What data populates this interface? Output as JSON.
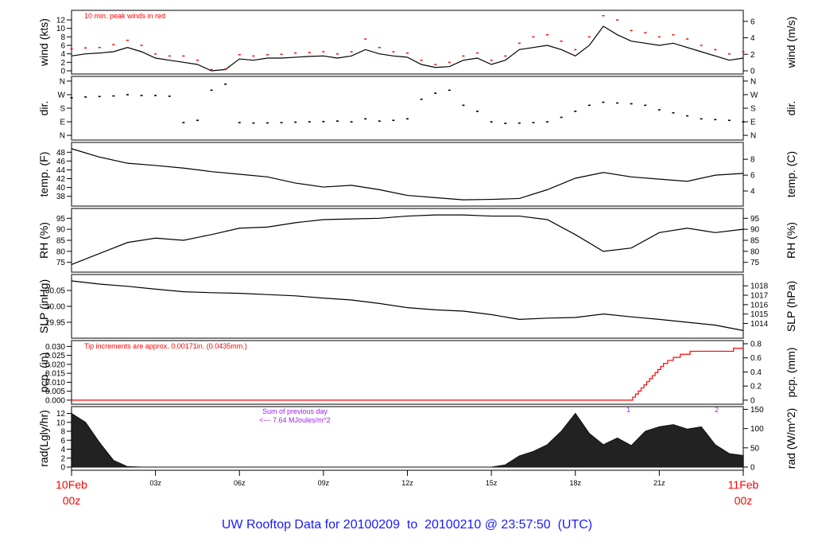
{
  "title": "UW Rooftop Data for 20100209  to  20100210 @ 23:57:50  (UTC)",
  "colors": {
    "line": "#000000",
    "peak": "#ff0000",
    "precip": "#ff0000",
    "note_purple": "#a020f0",
    "title": "#1a1aff",
    "date_labels": "#ff0000"
  },
  "chart_data": {
    "type": "line",
    "x_unit": "hour UTC",
    "xlim": [
      0,
      24
    ],
    "x_ticks": [
      {
        "h": 0,
        "label": "10Feb",
        "label2": "00z"
      },
      {
        "h": 3,
        "label": "03z"
      },
      {
        "h": 6,
        "label": "06z"
      },
      {
        "h": 9,
        "label": "09z"
      },
      {
        "h": 12,
        "label": "12z"
      },
      {
        "h": 15,
        "label": "15z"
      },
      {
        "h": 18,
        "label": "18z"
      },
      {
        "h": 21,
        "label": "21z"
      },
      {
        "h": 24,
        "label": "11Feb",
        "label2": "00z"
      }
    ],
    "panels": [
      {
        "id": "wind",
        "ylabel": "wind (kts)",
        "ylabel_right": "wind (m/s)",
        "ylim": [
          0,
          13.5
        ],
        "yticks": [
          0,
          2,
          4,
          6,
          8,
          10,
          12
        ],
        "yticks_right": [
          {
            "v": 0,
            "label": "0"
          },
          {
            "v": 3.888,
            "label": "2"
          },
          {
            "v": 7.776,
            "label": "4"
          },
          {
            "v": 11.664,
            "label": "6"
          }
        ],
        "annotation": "10 min. peak winds in red",
        "x_step": 0.5,
        "series": [
          3.5,
          4,
          4.2,
          4.5,
          5.5,
          4.5,
          3,
          2.5,
          2,
          1.5,
          0,
          0.3,
          2.8,
          2.5,
          3,
          3,
          3.2,
          3.4,
          3.5,
          3,
          3.5,
          5,
          4,
          3.5,
          3.2,
          1.5,
          0.8,
          1,
          2.5,
          3,
          1.5,
          2.5,
          5,
          5.5,
          6,
          5,
          3.5,
          6,
          10.5,
          8.5,
          7,
          6.5,
          6,
          6.5,
          5.5,
          4.5,
          3.5,
          2.5,
          3
        ],
        "peaks": [
          5.2,
          5.4,
          5.5,
          6.2,
          7.2,
          6,
          4,
          3.5,
          3.5,
          2.5,
          0.3,
          0.4,
          3.8,
          3.5,
          3.8,
          3.9,
          4.2,
          4.3,
          4.5,
          4,
          4.5,
          7.5,
          5.5,
          4.5,
          4.2,
          2.5,
          1.5,
          2,
          3.5,
          4.2,
          2.5,
          3.5,
          6.5,
          8,
          8.5,
          7,
          5,
          8,
          13,
          12,
          9.5,
          9,
          8,
          8.5,
          7.5,
          6,
          5,
          4,
          4.5
        ]
      },
      {
        "id": "dir",
        "ylabel": "dir.",
        "ylabel_right": "dir.",
        "ylim": [
          -10,
          370
        ],
        "style": "points",
        "yticks_labeled": [
          {
            "v": 0,
            "label": "N"
          },
          {
            "v": 90,
            "label": "E"
          },
          {
            "v": 180,
            "label": "S"
          },
          {
            "v": 270,
            "label": "W"
          },
          {
            "v": 360,
            "label": "N"
          }
        ],
        "x_step": 0.5,
        "series": [
          250,
          255,
          258,
          262,
          270,
          265,
          265,
          260,
          85,
          100,
          300,
          340,
          85,
          82,
          83,
          85,
          88,
          90,
          92,
          95,
          90,
          110,
          95,
          100,
          110,
          240,
          280,
          300,
          200,
          160,
          90,
          80,
          82,
          85,
          90,
          120,
          160,
          200,
          220,
          215,
          210,
          200,
          170,
          150,
          130,
          110,
          105,
          100,
          90
        ]
      },
      {
        "id": "temp",
        "ylabel": "temp. (F)",
        "ylabel_right": "temp. (C)",
        "ylim": [
          36.5,
          49.5
        ],
        "yticks": [
          38,
          40,
          42,
          44,
          46,
          48
        ],
        "yticks_right": [
          {
            "v": 39.2,
            "label": "4"
          },
          {
            "v": 42.8,
            "label": "6"
          },
          {
            "v": 46.4,
            "label": "8"
          }
        ],
        "x_step": 1,
        "series": [
          48.8,
          46.9,
          45.5,
          45,
          44.4,
          43.6,
          43,
          42.4,
          41,
          40.1,
          40.5,
          39.5,
          38.2,
          37.7,
          37.2,
          37.3,
          37.5,
          39.5,
          42.1,
          43.4,
          42.4,
          41.9,
          41.4,
          42.8,
          43.2
        ]
      },
      {
        "id": "rh",
        "ylabel": "RH (%)",
        "ylabel_right": "RH (%)",
        "ylim": [
          72,
          98
        ],
        "yticks": [
          75,
          80,
          85,
          90,
          95
        ],
        "yticks_right": [
          {
            "v": 75,
            "label": "75"
          },
          {
            "v": 80,
            "label": "80"
          },
          {
            "v": 85,
            "label": "85"
          },
          {
            "v": 90,
            "label": "90"
          },
          {
            "v": 95,
            "label": "95"
          }
        ],
        "x_step": 1,
        "series": [
          74,
          79,
          84,
          86,
          85,
          87.6,
          90.5,
          91,
          93,
          94.4,
          94.7,
          95,
          96,
          96.5,
          96.5,
          96,
          96,
          94.4,
          87.6,
          80,
          81.5,
          88.5,
          90.5,
          88.5,
          90
        ]
      },
      {
        "id": "slp",
        "ylabel": "SLP (inHg)",
        "ylabel_right": "SLP (hPa)",
        "ylim": [
          29.91,
          30.09
        ],
        "yticks": [
          29.95,
          30.0,
          30.05
        ],
        "ytick_format": 2,
        "yticks_right": [
          {
            "v": 29.9463,
            "label": "1014"
          },
          {
            "v": 29.9758,
            "label": "1015"
          },
          {
            "v": 30.0054,
            "label": "1016"
          },
          {
            "v": 30.0349,
            "label": "1017"
          },
          {
            "v": 30.0644,
            "label": "1018"
          }
        ],
        "x_step": 1,
        "series": [
          30.08,
          30.07,
          30.063,
          30.054,
          30.046,
          30.043,
          30.041,
          30.037,
          30.033,
          30.026,
          30.02,
          30.009,
          29.996,
          29.989,
          29.985,
          29.974,
          29.959,
          29.963,
          29.965,
          29.976,
          29.967,
          29.959,
          29.95,
          29.941,
          29.924
        ]
      },
      {
        "id": "pcp",
        "ylabel": "pcp. (in)",
        "ylabel_right": "pcp. (mm)",
        "ylim": [
          -0.0005,
          0.0315
        ],
        "style": "step",
        "yticks": [
          0,
          0.005,
          0.01,
          0.015,
          0.02,
          0.025,
          0.03
        ],
        "ytick_format": 3,
        "yticks_right": [
          {
            "v": 0,
            "label": "0"
          },
          {
            "v": 0.00787,
            "label": "0.2"
          },
          {
            "v": 0.01575,
            "label": "0.4"
          },
          {
            "v": 0.02362,
            "label": "0.6"
          },
          {
            "v": 0.0315,
            "label": "0.8"
          }
        ],
        "annotation": "Tip increments are approx. 0.00171in. (0.0435mm.)",
        "points": [
          [
            0,
            0
          ],
          [
            19.95,
            0
          ],
          [
            20.05,
            0.0017
          ],
          [
            20.15,
            0.0034
          ],
          [
            20.25,
            0.0051
          ],
          [
            20.35,
            0.0068
          ],
          [
            20.45,
            0.0085
          ],
          [
            20.55,
            0.0103
          ],
          [
            20.65,
            0.012
          ],
          [
            20.75,
            0.0137
          ],
          [
            20.85,
            0.0154
          ],
          [
            20.95,
            0.0171
          ],
          [
            21.05,
            0.0188
          ],
          [
            21.15,
            0.0205
          ],
          [
            21.3,
            0.0222
          ],
          [
            21.5,
            0.0239
          ],
          [
            21.75,
            0.0256
          ],
          [
            22.1,
            0.0273
          ],
          [
            23.6,
            0.0273
          ],
          [
            23.65,
            0.029
          ],
          [
            24,
            0.029
          ]
        ],
        "markers": [
          {
            "h": 19.9,
            "label": "1"
          },
          {
            "h": 23.05,
            "label": "2"
          }
        ]
      },
      {
        "id": "rad",
        "ylabel": "rad(Lgly/hr)",
        "ylabel_right": "rad (W/m^2)",
        "ylim": [
          0,
          12.8
        ],
        "style": "area",
        "yticks": [
          0,
          2,
          4,
          6,
          8,
          10,
          12
        ],
        "yticks_right": [
          {
            "v": 0,
            "label": "0"
          },
          {
            "v": 4.3,
            "label": "50"
          },
          {
            "v": 8.6,
            "label": "100"
          },
          {
            "v": 12.9,
            "label": "150"
          }
        ],
        "annotation": "Sum of previous day",
        "annotation2": "<--- 7.64 MJoules/m^2",
        "x_step": 0.5,
        "series": [
          12,
          10,
          5.5,
          1.5,
          0.1,
          0,
          0,
          0,
          0,
          0,
          0,
          0,
          0,
          0,
          0,
          0,
          0,
          0,
          0,
          0,
          0,
          0,
          0,
          0,
          0,
          0,
          0,
          0,
          0,
          0,
          0,
          0.5,
          2.5,
          3.5,
          5,
          8,
          12,
          7.5,
          5,
          6.5,
          4.8,
          8,
          9,
          9.5,
          8.5,
          9,
          5,
          3,
          2.6
        ]
      }
    ]
  }
}
